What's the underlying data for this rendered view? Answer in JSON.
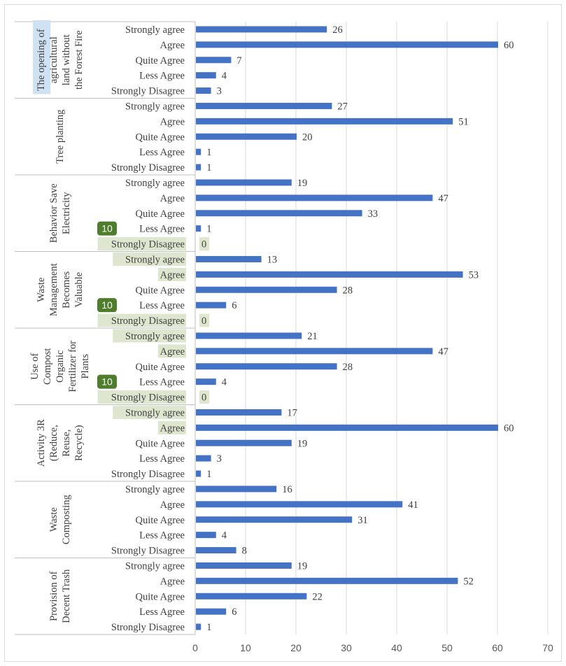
{
  "chart_data": {
    "type": "bar",
    "orientation": "horizontal",
    "title": "",
    "xlabel": "",
    "ylabel": "",
    "xlim": [
      0,
      70
    ],
    "x_ticks": [
      0,
      10,
      20,
      30,
      40,
      50,
      60,
      70
    ],
    "grid": "vertical gridlines",
    "legend": "none",
    "bar_color": "#4472c4",
    "groups": [
      {
        "name": "The opening of agricultural land without the Forest Fire",
        "lines": [
          "The opening of",
          "agricultural",
          "land without",
          "the Forest Fire"
        ],
        "categories": [
          "Strongly agree",
          "Agree",
          "Quite Agree",
          "Less Agree",
          "Strongly Disagree"
        ],
        "values": [
          26,
          60,
          7,
          4,
          3
        ]
      },
      {
        "name": "Tree planting",
        "lines": [
          "Tree planting"
        ],
        "categories": [
          "Strongly agree",
          "Agree",
          "Quite Agree",
          "Less Agree",
          "Strongly Disagree"
        ],
        "values": [
          27,
          51,
          20,
          1,
          1
        ]
      },
      {
        "name": "Behavior Save Electricity",
        "lines": [
          "Behavior Save",
          "Electricity"
        ],
        "categories": [
          "Strongly agree",
          "Agree",
          "Quite Agree",
          "Less Agree",
          "Strongly Disagree"
        ],
        "values": [
          19,
          47,
          33,
          1,
          0
        ]
      },
      {
        "name": "Waste Management Becomes Valuable",
        "lines": [
          "Waste",
          "Management",
          "Becomes",
          "Valuable"
        ],
        "categories": [
          "Strongly agree",
          "Agree",
          "Quite Agree",
          "Less Agree",
          "Strongly Disagree"
        ],
        "values": [
          13,
          53,
          28,
          6,
          0
        ]
      },
      {
        "name": "Use of Compost Organic Fertilizer for Plants",
        "lines": [
          "Use of",
          "Compost",
          "Organic",
          "Fertilizer for",
          "Plants"
        ],
        "categories": [
          "Strongly agree",
          "Agree",
          "Quite Agree",
          "Less Agree",
          "Strongly Disagree"
        ],
        "values": [
          21,
          47,
          28,
          4,
          0
        ]
      },
      {
        "name": "Activity 3R (Reduce, Reuse, Recycle)",
        "lines": [
          "Activity 3R",
          "(Reduce,",
          "Reuse,",
          "Recycle)"
        ],
        "categories": [
          "Strongly agree",
          "Agree",
          "Quite Agree",
          "Less Agree",
          "Strongly Disagree"
        ],
        "values": [
          17,
          60,
          19,
          3,
          1
        ]
      },
      {
        "name": "Waste Composting",
        "lines": [
          "Waste",
          "Composting"
        ],
        "categories": [
          "Strongly agree",
          "Agree",
          "Quite Agree",
          "Less Agree",
          "Strongly Disagree"
        ],
        "values": [
          16,
          41,
          31,
          4,
          8
        ]
      },
      {
        "name": "Provision of Decent Trash",
        "lines": [
          "Provision of",
          "Decent Trash"
        ],
        "categories": [
          "Strongly agree",
          "Agree",
          "Quite Agree",
          "Less Agree",
          "Strongly Disagree"
        ],
        "values": [
          19,
          52,
          22,
          6,
          1
        ]
      }
    ],
    "overlays": {
      "badge_text": "10",
      "badges": [
        {
          "group": 2,
          "row": 3
        },
        {
          "group": 3,
          "row": 3
        },
        {
          "group": 4,
          "row": 3
        }
      ],
      "highlighted_labels": [
        {
          "group": 2,
          "row": 4
        },
        {
          "group": 3,
          "row": 0
        },
        {
          "group": 3,
          "row": 1
        },
        {
          "group": 3,
          "row": 4
        },
        {
          "group": 4,
          "row": 0
        },
        {
          "group": 4,
          "row": 1
        },
        {
          "group": 4,
          "row": 4
        },
        {
          "group": 5,
          "row": 0
        },
        {
          "group": 5,
          "row": 1
        }
      ],
      "highlighted_values": [
        {
          "group": 2,
          "row": 4
        },
        {
          "group": 3,
          "row": 4
        },
        {
          "group": 4,
          "row": 4
        }
      ],
      "highlighted_group_label": 0
    }
  }
}
